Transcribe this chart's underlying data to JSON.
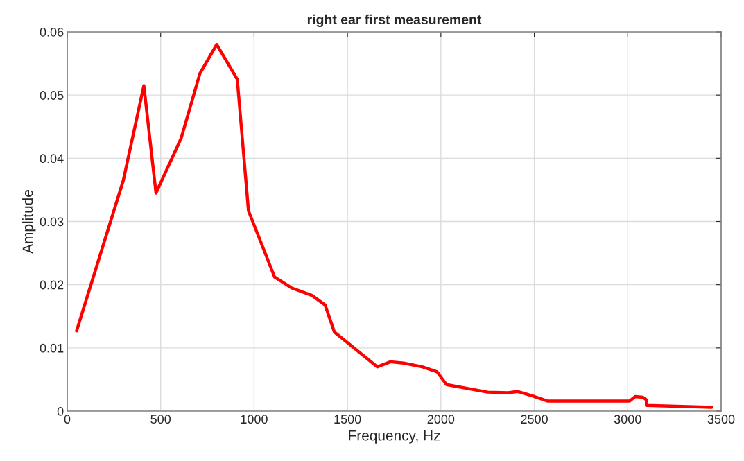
{
  "chart_data": {
    "type": "line",
    "title": "right ear first measurement",
    "xlabel": "Frequency, Hz",
    "ylabel": "Amplitude",
    "xlim": [
      0,
      3500
    ],
    "xticks": [
      0,
      500,
      1000,
      1500,
      2000,
      2500,
      3000,
      3500
    ],
    "ylim": [
      0,
      0.06
    ],
    "yticks": [
      0,
      0.01,
      0.02,
      0.03,
      0.04,
      0.05,
      0.06
    ],
    "grid": true,
    "marker": "none",
    "line_style": "solid",
    "series": [
      {
        "color": "#ff0000",
        "x": [
          50,
          300,
          410,
          475,
          610,
          710,
          800,
          910,
          970,
          1110,
          1200,
          1310,
          1380,
          1430,
          1660,
          1730,
          1800,
          1900,
          1980,
          2030,
          2250,
          2360,
          2410,
          2480,
          2570,
          3010,
          3040,
          3080,
          3100,
          3100,
          3450
        ],
        "values": [
          0.0127,
          0.0365,
          0.0515,
          0.0345,
          0.0432,
          0.0534,
          0.058,
          0.0525,
          0.0317,
          0.0212,
          0.0195,
          0.0183,
          0.0168,
          0.0125,
          0.007,
          0.0078,
          0.0076,
          0.007,
          0.0062,
          0.0042,
          0.003,
          0.0029,
          0.0031,
          0.0025,
          0.0016,
          0.0016,
          0.0023,
          0.0022,
          0.0018,
          0.0009,
          0.0006
        ]
      }
    ]
  }
}
